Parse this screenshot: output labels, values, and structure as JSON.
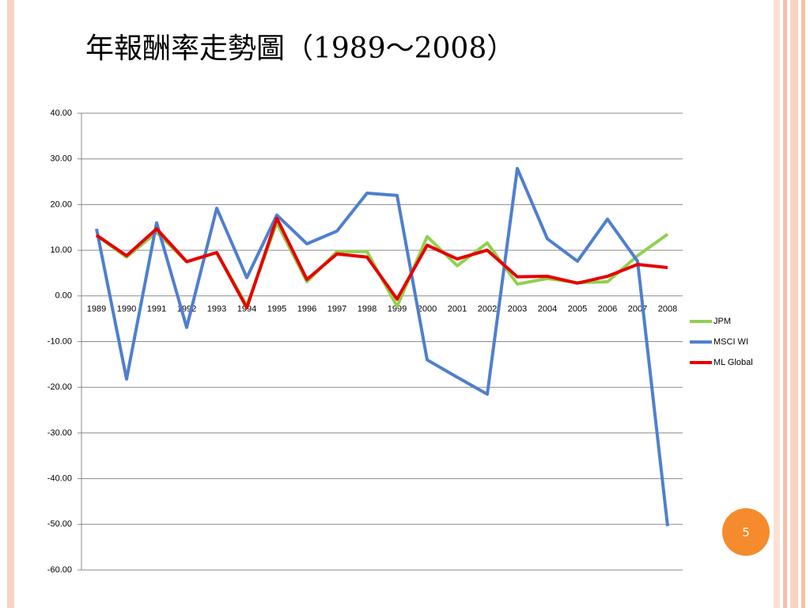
{
  "page_number": "5",
  "chart_data": {
    "type": "line",
    "title": "年報酬率走勢圖（1989～2008）",
    "categories": [
      "1989",
      "1990",
      "1991",
      "1992",
      "1993",
      "1994",
      "1995",
      "1996",
      "1997",
      "1998",
      "1999",
      "2000",
      "2001",
      "2002",
      "2003",
      "2004",
      "2005",
      "2006",
      "2007",
      "2008"
    ],
    "series": [
      {
        "name": "JPM",
        "color": "#92d050",
        "values": [
          13.2,
          8.5,
          13.9,
          7.5,
          9.5,
          -2.1,
          16.0,
          3.1,
          9.7,
          9.7,
          -2.3,
          13.0,
          6.6,
          11.6,
          2.6,
          3.8,
          2.9,
          3.1,
          8.8,
          13.5
        ]
      },
      {
        "name": "MSCI WI",
        "color": "#4f7fce",
        "values": [
          14.7,
          -18.2,
          16.0,
          -6.9,
          19.2,
          4.0,
          17.7,
          11.4,
          14.2,
          22.5,
          22.0,
          -14.0,
          -17.8,
          -21.5,
          27.9,
          12.5,
          7.6,
          16.8,
          7.6,
          -50.4
        ]
      },
      {
        "name": "ML Global",
        "color": "#e60000",
        "values": [
          13.3,
          8.8,
          14.7,
          7.5,
          9.5,
          -2.6,
          17.0,
          3.6,
          9.2,
          8.5,
          -0.7,
          11.1,
          8.1,
          10.0,
          4.2,
          4.3,
          2.8,
          4.3,
          6.9,
          6.2
        ]
      }
    ],
    "ylim": [
      -60,
      40
    ],
    "yticks": [
      {
        "value": -60,
        "label": "-60.00"
      },
      {
        "value": -50,
        "label": "-50.00"
      },
      {
        "value": -40,
        "label": "-40.00"
      },
      {
        "value": -30,
        "label": "-30.00"
      },
      {
        "value": -20,
        "label": "-20.00"
      },
      {
        "value": -10,
        "label": "-10.00"
      },
      {
        "value": 0,
        "label": "0.00"
      },
      {
        "value": 10,
        "label": "10.00"
      },
      {
        "value": 20,
        "label": "20.00"
      },
      {
        "value": 30,
        "label": "30.00"
      },
      {
        "value": 40,
        "label": "40.00"
      }
    ],
    "grid": true,
    "legend": "right"
  }
}
